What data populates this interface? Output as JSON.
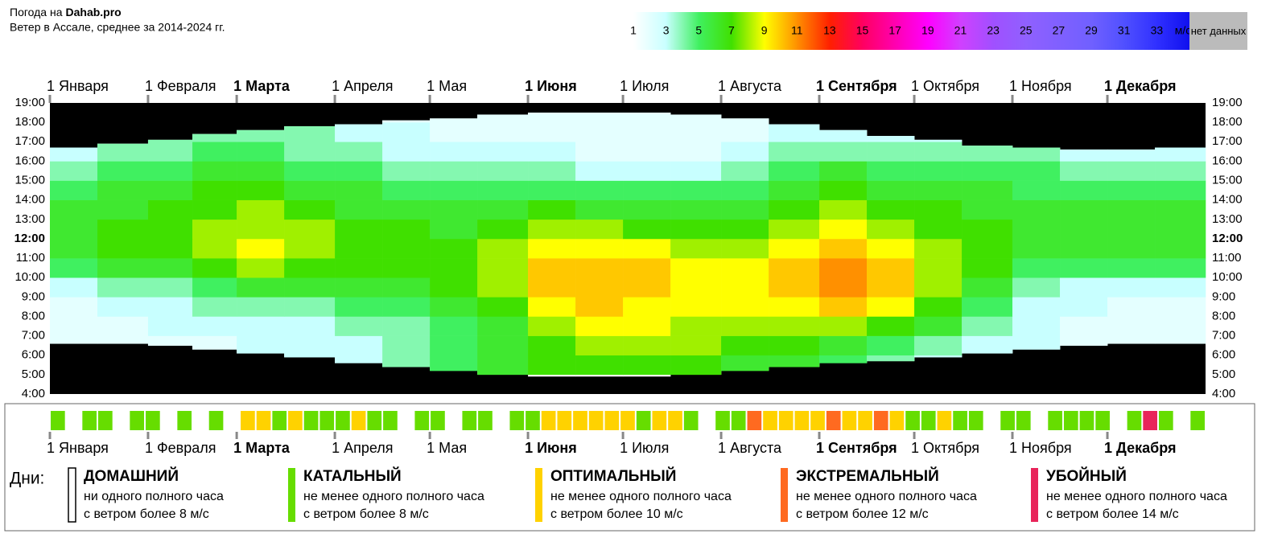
{
  "header": {
    "site_prefix": "Погода на",
    "site": "Dahab.pro",
    "subtitle": "Ветер в Ассале, среднее за 2014-2024 гг."
  },
  "chart_data": {
    "type": "heatmap",
    "xlim": [
      0,
      365
    ],
    "xticks": [
      {
        "value": 0,
        "label": "1 Января"
      },
      {
        "value": 31,
        "label": "1 Февраля"
      },
      {
        "value": 59,
        "label": "1 Марта"
      },
      {
        "value": 90,
        "label": "1 Апреля"
      },
      {
        "value": 120,
        "label": "1 Мая"
      },
      {
        "value": 151,
        "label": "1 Июня"
      },
      {
        "value": 181,
        "label": "1 Июля"
      },
      {
        "value": 212,
        "label": "1 Августа"
      },
      {
        "value": 243,
        "label": "1 Сентября"
      },
      {
        "value": 273,
        "label": "1 Октября"
      },
      {
        "value": 304,
        "label": "1 Ноября"
      },
      {
        "value": 334,
        "label": "1 Декабря"
      }
    ],
    "bold_xticks": [
      2,
      5,
      8,
      11
    ],
    "ylim": [
      4,
      19
    ],
    "yticks": [
      {
        "value": 4,
        "label": "4:00"
      },
      {
        "value": 5,
        "label": "5:00"
      },
      {
        "value": 6,
        "label": "6:00"
      },
      {
        "value": 7,
        "label": "7:00"
      },
      {
        "value": 8,
        "label": "8:00"
      },
      {
        "value": 9,
        "label": "9:00"
      },
      {
        "value": 10,
        "label": "10:00"
      },
      {
        "value": 11,
        "label": "11:00"
      },
      {
        "value": 12,
        "label": "12:00"
      },
      {
        "value": 13,
        "label": "13:00"
      },
      {
        "value": 14,
        "label": "14:00"
      },
      {
        "value": 15,
        "label": "15:00"
      },
      {
        "value": 16,
        "label": "16:00"
      },
      {
        "value": 17,
        "label": "17:00"
      },
      {
        "value": 18,
        "label": "18:00"
      },
      {
        "value": 19,
        "label": "19:00"
      }
    ],
    "bold_yticks": [
      8
    ],
    "x_edges": [
      0,
      15,
      31,
      45,
      59,
      74,
      90,
      105,
      120,
      135,
      151,
      166,
      181,
      196,
      212,
      227,
      243,
      258,
      273,
      288,
      304,
      319,
      334,
      349,
      365
    ],
    "hours": [
      4,
      5,
      6,
      7,
      8,
      9,
      10,
      11,
      12,
      13,
      14,
      15,
      16,
      17,
      18
    ],
    "values": [
      [
        null,
        null,
        null,
        null,
        null,
        null,
        null,
        null,
        null,
        null,
        null,
        null,
        null,
        null,
        null,
        null,
        null,
        null,
        null,
        null,
        null,
        null,
        null,
        null
      ],
      [
        null,
        null,
        null,
        null,
        null,
        3,
        3,
        4,
        5,
        6,
        7,
        7,
        7,
        7,
        6,
        6,
        5,
        4,
        3,
        null,
        null,
        null,
        null,
        null
      ],
      [
        2,
        2,
        2,
        2,
        3,
        3,
        3,
        4,
        5,
        6,
        7,
        8,
        8,
        8,
        7,
        7,
        6,
        5,
        4,
        3,
        3,
        2,
        2,
        2
      ],
      [
        2,
        2,
        3,
        3,
        3,
        3,
        4,
        4,
        5,
        6,
        8,
        9,
        9,
        8,
        8,
        8,
        8,
        7,
        6,
        4,
        3,
        2,
        2,
        2
      ],
      [
        2,
        3,
        3,
        4,
        4,
        4,
        5,
        5,
        6,
        7,
        9,
        10,
        9,
        9,
        9,
        9,
        10,
        9,
        7,
        5,
        3,
        3,
        2,
        2
      ],
      [
        3,
        4,
        4,
        5,
        6,
        6,
        6,
        6,
        7,
        8,
        10,
        10,
        10,
        9,
        9,
        10,
        11,
        10,
        8,
        6,
        4,
        3,
        3,
        3
      ],
      [
        5,
        6,
        6,
        7,
        8,
        7,
        7,
        7,
        7,
        8,
        10,
        10,
        10,
        9,
        9,
        10,
        11,
        10,
        8,
        7,
        5,
        5,
        5,
        5
      ],
      [
        6,
        7,
        7,
        8,
        9,
        8,
        7,
        7,
        7,
        8,
        9,
        9,
        9,
        8,
        8,
        9,
        10,
        9,
        8,
        7,
        6,
        6,
        6,
        6
      ],
      [
        6,
        7,
        7,
        8,
        8,
        8,
        7,
        7,
        6,
        7,
        8,
        8,
        7,
        7,
        7,
        8,
        9,
        8,
        7,
        7,
        6,
        6,
        6,
        6
      ],
      [
        6,
        6,
        7,
        7,
        8,
        7,
        6,
        6,
        6,
        6,
        7,
        6,
        6,
        6,
        6,
        7,
        8,
        7,
        7,
        6,
        6,
        6,
        6,
        6
      ],
      [
        5,
        6,
        6,
        7,
        7,
        6,
        6,
        5,
        5,
        5,
        5,
        5,
        5,
        5,
        5,
        6,
        7,
        6,
        6,
        6,
        5,
        5,
        5,
        5
      ],
      [
        4,
        5,
        5,
        6,
        6,
        5,
        5,
        4,
        4,
        4,
        4,
        3,
        3,
        3,
        4,
        5,
        6,
        5,
        5,
        5,
        5,
        4,
        4,
        4
      ],
      [
        3,
        4,
        4,
        5,
        5,
        4,
        4,
        3,
        3,
        3,
        3,
        2,
        2,
        2,
        3,
        4,
        4,
        4,
        4,
        4,
        4,
        3,
        3,
        3
      ],
      [
        null,
        null,
        4,
        4,
        4,
        4,
        3,
        3,
        2,
        2,
        2,
        2,
        2,
        2,
        2,
        3,
        3,
        3,
        3,
        null,
        null,
        null,
        null,
        null
      ],
      [
        null,
        null,
        null,
        null,
        null,
        null,
        null,
        2,
        2,
        2,
        2,
        2,
        2,
        2,
        2,
        null,
        null,
        null,
        null,
        null,
        null,
        null,
        null,
        null
      ]
    ],
    "sunrise": [
      6.6,
      6.6,
      6.5,
      6.3,
      6.1,
      5.9,
      5.6,
      5.4,
      5.2,
      5.0,
      4.9,
      4.9,
      4.9,
      5.0,
      5.2,
      5.4,
      5.6,
      5.7,
      5.9,
      6.1,
      6.3,
      6.5,
      6.6,
      6.6
    ],
    "sunset": [
      16.7,
      16.9,
      17.1,
      17.4,
      17.6,
      17.8,
      17.9,
      18.1,
      18.2,
      18.4,
      18.5,
      18.5,
      18.5,
      18.4,
      18.2,
      17.9,
      17.6,
      17.3,
      17.1,
      16.8,
      16.7,
      16.6,
      16.6,
      16.7
    ],
    "night_color": "#000000",
    "colorbar": {
      "ticks": [
        1,
        3,
        5,
        7,
        9,
        11,
        13,
        15,
        17,
        19,
        21,
        23,
        25,
        27,
        29,
        31,
        33,
        {
          "value": 35,
          "label": "м/с"
        }
      ],
      "colors": [
        "#ffffff",
        "#c8ffff",
        "#40f060",
        "#40e000",
        "#ffff00",
        "#ff9000",
        "#ff2000",
        "#ff0060",
        "#ff00b0",
        "#ff00ff",
        "#d040ff",
        "#a050ff",
        "#9060ff",
        "#8060ff",
        "#7060ff",
        "#5050ff",
        "#3030ff",
        "#1010ee"
      ],
      "no_data_label": "нет данных",
      "no_data_color": "#bbbbbb"
    }
  },
  "strip": {
    "types": [
      1,
      0,
      1,
      1,
      0,
      1,
      1,
      0,
      1,
      0,
      1,
      0,
      2,
      2,
      1,
      2,
      1,
      1,
      1,
      2,
      1,
      1,
      0,
      1,
      1,
      0,
      1,
      1,
      0,
      1,
      1,
      2,
      2,
      2,
      2,
      2,
      2,
      1,
      2,
      2,
      1,
      0,
      1,
      1,
      3,
      2,
      2,
      2,
      2,
      3,
      2,
      2,
      3,
      2,
      1,
      1,
      2,
      1,
      1,
      0,
      1,
      1,
      0,
      1,
      1,
      1,
      1,
      0,
      1,
      4,
      1,
      0,
      1
    ]
  },
  "legend": {
    "title": "Дни:",
    "levels": [
      {
        "name": "ДОМАШНИЙ",
        "lines": [
          "ни одного полного часа",
          "с ветром более 8 м/с"
        ],
        "color": "#ffffff"
      },
      {
        "name": "КАТАЛЬНЫЙ",
        "lines": [
          "не менее одного полного часа",
          "с ветром более 8 м/с"
        ],
        "color": "#66dd00"
      },
      {
        "name": "ОПТИМАЛЬНЫЙ",
        "lines": [
          "не менее одного полного часа",
          "с ветром более 10 м/с"
        ],
        "color": "#ffd200"
      },
      {
        "name": "ЭКСТРЕМАЛЬНЫЙ",
        "lines": [
          "не менее одного полного часа",
          "с ветром более 12 м/с"
        ],
        "color": "#ff6a20"
      },
      {
        "name": "УБОЙНЫЙ",
        "lines": [
          "не менее одного полного часа",
          "с ветром более 14 м/с"
        ],
        "color": "#e8245a"
      }
    ]
  }
}
